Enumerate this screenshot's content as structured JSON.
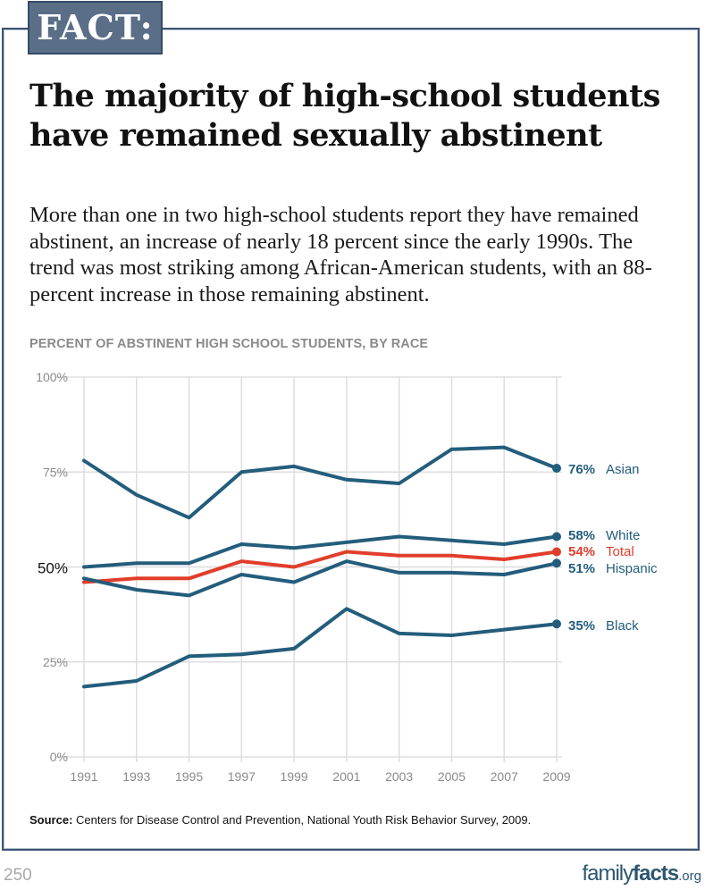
{
  "badge": {
    "label": "FACT:"
  },
  "headline": "The majority of high-school students have remained sexually abstinent",
  "lede": "More than one in two high-school students report they have remained abstinent, an increase of nearly 18 percent since the early 1990s. The trend was most striking among African-American students, with an 88-percent increase in those remaining abstinent.",
  "source": {
    "label": "Source:",
    "text": " Centers for Disease Control and Prevention, National Youth Risk Behavior Survey, 2009."
  },
  "footer": {
    "page_number": "250",
    "brand_part1": "family",
    "brand_part2": "facts",
    "brand_part3": ".org"
  },
  "colors": {
    "race_series": "#235d7c",
    "total_series": "#e03e2b",
    "grid": "#dddddd",
    "axis_text": "#8a8a8a",
    "badge_bg": "#5a6e87",
    "frame": "#3c5370",
    "brand": "#2d5670"
  },
  "chart_data": {
    "type": "line",
    "title": "PERCENT OF ABSTINENT HIGH SCHOOL STUDENTS, BY RACE",
    "xlabel": "",
    "ylabel": "",
    "x": [
      1991,
      1993,
      1995,
      1997,
      1999,
      2001,
      2003,
      2005,
      2007,
      2009
    ],
    "x_tick_labels": [
      "1991",
      "1993",
      "1995",
      "1997",
      "1999",
      "2001",
      "2003",
      "2005",
      "2007",
      "2009"
    ],
    "ylim": [
      0,
      100
    ],
    "y_ticks": [
      0,
      25,
      50,
      75,
      100
    ],
    "y_tick_labels": [
      "0%",
      "25%",
      "50%",
      "75%",
      "100%"
    ],
    "y_tick_emphasized": "50%",
    "grid": true,
    "legend": "end-of-line labels, right",
    "series": [
      {
        "name": "Asian",
        "end_label": "76%",
        "color": "#235d7c",
        "values": [
          78,
          69,
          63,
          75,
          76.5,
          73,
          72,
          81,
          81.5,
          76
        ]
      },
      {
        "name": "White",
        "end_label": "58%",
        "color": "#235d7c",
        "values": [
          50,
          51,
          51,
          56,
          55,
          56.5,
          58,
          57,
          56,
          58
        ]
      },
      {
        "name": "Total",
        "end_label": "54%",
        "color": "#e03e2b",
        "values": [
          46,
          47,
          47,
          51.5,
          50,
          54,
          53,
          53,
          52,
          54
        ]
      },
      {
        "name": "Hispanic",
        "end_label": "51%",
        "color": "#235d7c",
        "values": [
          47,
          44,
          42.5,
          48,
          46,
          51.5,
          48.5,
          48.5,
          48,
          51
        ]
      },
      {
        "name": "Black",
        "end_label": "35%",
        "color": "#235d7c",
        "values": [
          18.5,
          20,
          26.5,
          27,
          28.5,
          39,
          32.5,
          32,
          33.5,
          35
        ]
      }
    ]
  }
}
